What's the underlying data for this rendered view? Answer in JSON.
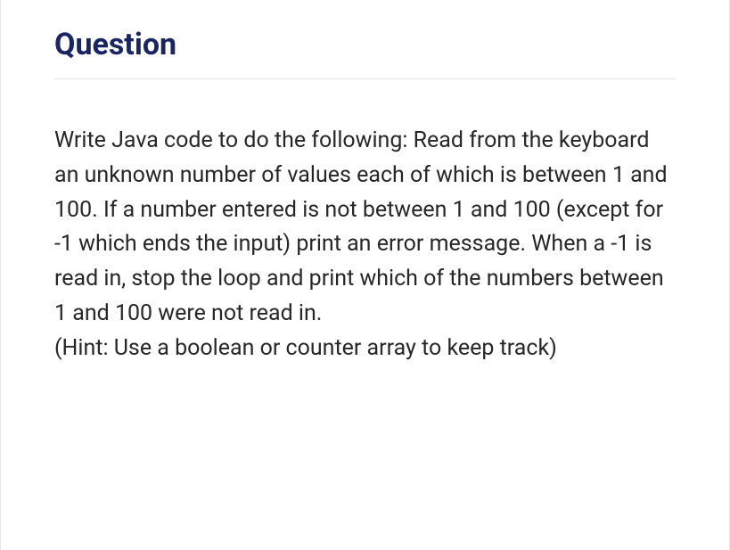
{
  "heading": {
    "text": "Question",
    "color": "#1a2563",
    "fontsize": 34,
    "fontweight": 700
  },
  "body": {
    "paragraph1": "Write Java code to do the following: Read from the keyboard an unknown number of values each of which is between 1 and 100. If a number entered is not between 1 and 100 (except for -1 which ends the input) print an error message. When a -1 is read in, stop the loop and print which of the numbers between 1 and 100 were not read in.",
    "paragraph2": "(Hint: Use a boolean or counter array to keep track)",
    "color": "#272727",
    "fontsize": 25,
    "lineheight": 1.55
  },
  "layout": {
    "background_color": "#ffffff",
    "divider_color": "#e5e5e5",
    "border_color": "#e8e8e8"
  }
}
